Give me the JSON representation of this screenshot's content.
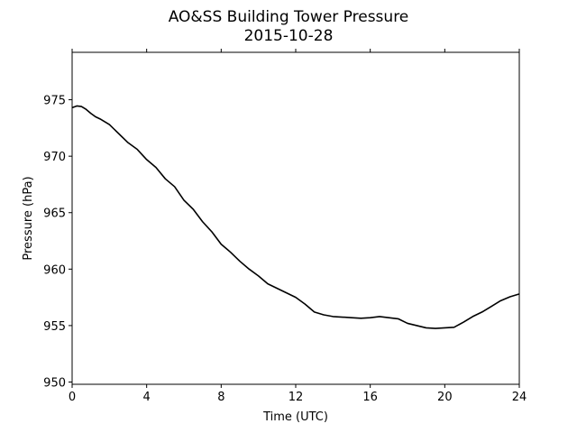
{
  "chart_data": {
    "type": "line",
    "title": "AO&SS Building Tower Pressure",
    "subtitle": "2015-10-28",
    "xlabel": "Time (UTC)",
    "ylabel": "Pressure (hPa)",
    "xlim": [
      0,
      24
    ],
    "ylim": [
      949.8,
      979.2
    ],
    "xticks": [
      0,
      4,
      8,
      12,
      16,
      20,
      24
    ],
    "yticks": [
      950,
      955,
      960,
      965,
      970,
      975
    ],
    "grid": false,
    "legend": "none",
    "series": [
      {
        "color": "#000000",
        "x": [
          0,
          0.25,
          0.5,
          0.75,
          1,
          1.25,
          1.5,
          2,
          2.5,
          3,
          3.5,
          4,
          4.5,
          5,
          5.5,
          6,
          6.5,
          7,
          7.5,
          8,
          8.5,
          9,
          9.5,
          10,
          10.5,
          11,
          11.5,
          12,
          12.5,
          13,
          13.5,
          14,
          14.5,
          15,
          15.5,
          16,
          16.5,
          17,
          17.5,
          18,
          18.5,
          19,
          19.5,
          20,
          20.5,
          21,
          21.5,
          22,
          22.5,
          23,
          23.5,
          24
        ],
        "y": [
          974.3,
          974.45,
          974.4,
          974.15,
          973.8,
          973.5,
          973.3,
          972.8,
          972.0,
          971.2,
          970.6,
          969.7,
          969.0,
          968.0,
          967.3,
          966.1,
          965.3,
          964.2,
          963.3,
          962.2,
          961.5,
          960.7,
          960.0,
          959.4,
          958.7,
          958.3,
          957.9,
          957.5,
          956.9,
          956.2,
          955.95,
          955.8,
          955.75,
          955.7,
          955.65,
          955.7,
          955.8,
          955.7,
          955.6,
          955.2,
          955.0,
          954.8,
          954.75,
          954.8,
          954.85,
          955.3,
          955.8,
          956.2,
          956.7,
          957.2,
          957.55,
          957.8
        ]
      }
    ]
  }
}
